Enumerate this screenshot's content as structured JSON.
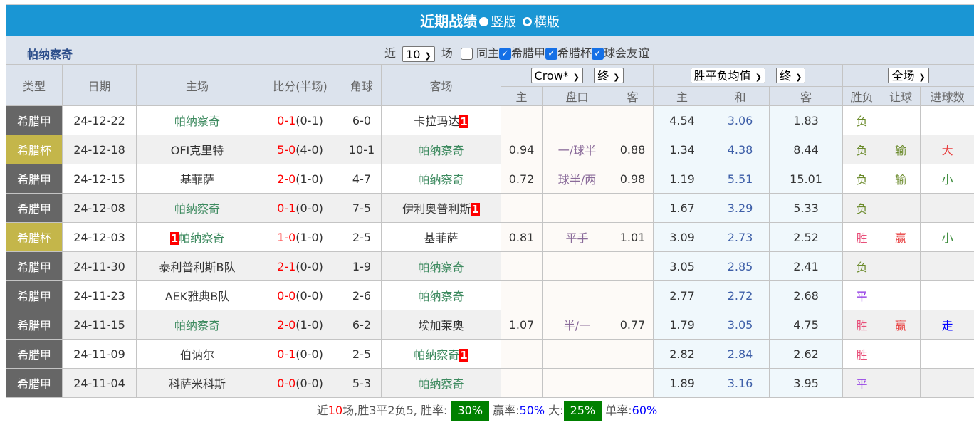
{
  "title": {
    "text": "近期战绩",
    "option_vertical": "竖版",
    "option_horizontal": "横版"
  },
  "team": "帕纳察奇",
  "filters": {
    "recent_label": "近",
    "count": "10",
    "games_label": "场",
    "same_home": "同主",
    "leagues": [
      "希腊甲",
      "希腊杯",
      "球会友谊"
    ]
  },
  "header": {
    "type": "类型",
    "date": "日期",
    "home": "主场",
    "score": "比分(半场)",
    "corner": "角球",
    "away": "客场",
    "company": "Crow*",
    "ah_state": "终",
    "odds_type": "胜平负均值",
    "odds_state": "终",
    "period": "全场",
    "ah_cols": [
      "主",
      "盘口",
      "客"
    ],
    "odds_cols": [
      "主",
      "和",
      "客"
    ],
    "result_cols": [
      "胜负",
      "让球",
      "进球数"
    ]
  },
  "colors": {
    "league_a": "#666666",
    "league_cup": "#c4b64a",
    "team_highlight": "#3d8a5f",
    "title_bar": "#1a96d4",
    "rate_box": "#008000"
  },
  "rows": [
    {
      "type": "希腊甲",
      "date": "24-12-22",
      "home": "帕纳察奇",
      "home_hl": true,
      "home_rc": "",
      "score": "0-1",
      "half": "(0-1)",
      "corner": "6-0",
      "away": "卡拉玛达",
      "away_hl": false,
      "away_rc": "1",
      "ah": [
        "",
        "",
        ""
      ],
      "odds": [
        "4.54",
        "3.06",
        "1.83"
      ],
      "res": [
        "负",
        "",
        ""
      ]
    },
    {
      "type": "希腊杯",
      "date": "24-12-18",
      "home": "OFI克里特",
      "home_hl": false,
      "home_rc": "",
      "score": "5-0",
      "half": "(4-0)",
      "corner": "10-1",
      "away": "帕纳察奇",
      "away_hl": true,
      "away_rc": "",
      "ah": [
        "0.94",
        "一/球半",
        "0.88"
      ],
      "odds": [
        "1.34",
        "4.38",
        "8.44"
      ],
      "res": [
        "负",
        "输",
        "大"
      ]
    },
    {
      "type": "希腊甲",
      "date": "24-12-15",
      "home": "基菲萨",
      "home_hl": false,
      "home_rc": "",
      "score": "2-0",
      "half": "(1-0)",
      "corner": "4-7",
      "away": "帕纳察奇",
      "away_hl": true,
      "away_rc": "",
      "ah": [
        "0.72",
        "球半/两",
        "0.98"
      ],
      "odds": [
        "1.19",
        "5.51",
        "15.01"
      ],
      "res": [
        "负",
        "输",
        "小"
      ]
    },
    {
      "type": "希腊甲",
      "date": "24-12-08",
      "home": "帕纳察奇",
      "home_hl": true,
      "home_rc": "",
      "score": "0-1",
      "half": "(0-0)",
      "corner": "7-5",
      "away": "伊利奥普利斯",
      "away_hl": false,
      "away_rc": "1",
      "ah": [
        "",
        "",
        ""
      ],
      "odds": [
        "1.67",
        "3.29",
        "5.33"
      ],
      "res": [
        "负",
        "",
        ""
      ]
    },
    {
      "type": "希腊杯",
      "date": "24-12-03",
      "home": "帕纳察奇",
      "home_hl": true,
      "home_rc": "1",
      "score": "1-0",
      "half": "(1-0)",
      "corner": "2-5",
      "away": "基菲萨",
      "away_hl": false,
      "away_rc": "",
      "ah": [
        "0.81",
        "平手",
        "1.01"
      ],
      "odds": [
        "3.09",
        "2.73",
        "2.52"
      ],
      "res": [
        "胜",
        "赢",
        "小"
      ]
    },
    {
      "type": "希腊甲",
      "date": "24-11-30",
      "home": "泰利普利斯B队",
      "home_hl": false,
      "home_rc": "",
      "score": "2-1",
      "half": "(0-0)",
      "corner": "1-9",
      "away": "帕纳察奇",
      "away_hl": true,
      "away_rc": "",
      "ah": [
        "",
        "",
        ""
      ],
      "odds": [
        "3.05",
        "2.85",
        "2.41"
      ],
      "res": [
        "负",
        "",
        ""
      ]
    },
    {
      "type": "希腊甲",
      "date": "24-11-23",
      "home": "AEK雅典B队",
      "home_hl": false,
      "home_rc": "",
      "score": "0-0",
      "half": "(0-0)",
      "corner": "2-6",
      "away": "帕纳察奇",
      "away_hl": true,
      "away_rc": "",
      "ah": [
        "",
        "",
        ""
      ],
      "odds": [
        "2.77",
        "2.72",
        "2.68"
      ],
      "res": [
        "平",
        "",
        ""
      ]
    },
    {
      "type": "希腊甲",
      "date": "24-11-15",
      "home": "帕纳察奇",
      "home_hl": true,
      "home_rc": "",
      "score": "2-0",
      "half": "(1-0)",
      "corner": "6-2",
      "away": "埃加莱奥",
      "away_hl": false,
      "away_rc": "",
      "ah": [
        "1.07",
        "半/一",
        "0.77"
      ],
      "odds": [
        "1.79",
        "3.05",
        "4.75"
      ],
      "res": [
        "胜",
        "赢",
        "走"
      ]
    },
    {
      "type": "希腊甲",
      "date": "24-11-09",
      "home": "伯讷尔",
      "home_hl": false,
      "home_rc": "",
      "score": "0-1",
      "half": "(0-0)",
      "corner": "2-5",
      "away": "帕纳察奇",
      "away_hl": true,
      "away_rc": "1",
      "ah": [
        "",
        "",
        ""
      ],
      "odds": [
        "2.82",
        "2.84",
        "2.62"
      ],
      "res": [
        "胜",
        "",
        ""
      ]
    },
    {
      "type": "希腊甲",
      "date": "24-11-04",
      "home": "科萨米科斯",
      "home_hl": false,
      "home_rc": "",
      "score": "0-0",
      "half": "(0-0)",
      "corner": "5-3",
      "away": "帕纳察奇",
      "away_hl": true,
      "away_rc": "",
      "ah": [
        "",
        "",
        ""
      ],
      "odds": [
        "1.89",
        "3.16",
        "3.95"
      ],
      "res": [
        "平",
        "",
        ""
      ]
    }
  ],
  "summary": {
    "p1": "近",
    "n": "10",
    "p2": "场,胜3平2负5, 胜率:",
    "win_rate": "30%",
    "p3": "赢率:",
    "ah_rate": "50%",
    "p4": "大:",
    "over_rate": "25%",
    "p5": "单率:",
    "odd_rate": "60%"
  }
}
